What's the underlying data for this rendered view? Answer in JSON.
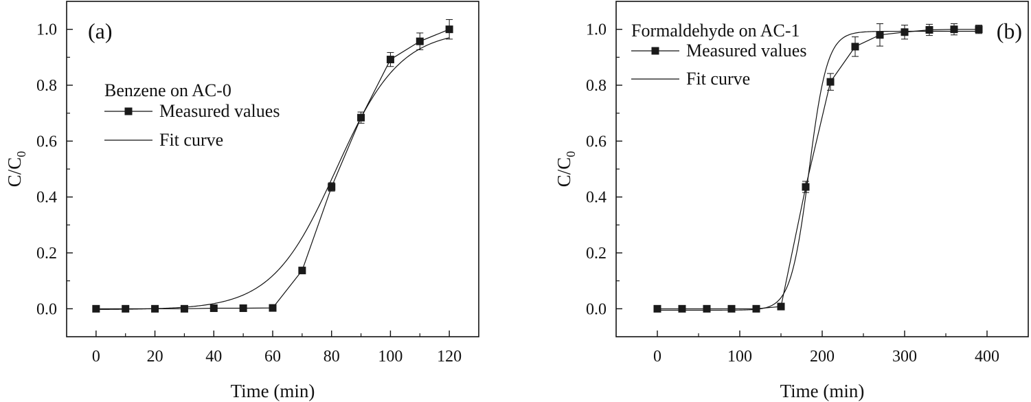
{
  "chart_data": [
    {
      "type": "line",
      "panel_label": "(a)",
      "legend_title": "Benzene on AC-0",
      "xlabel": "Time (min)",
      "ylabel_main": "C/C",
      "ylabel_sub": "0",
      "xlim": [
        -10,
        130
      ],
      "ylim": [
        -0.1,
        1.1
      ],
      "xticks": [
        0,
        20,
        40,
        60,
        80,
        100,
        120
      ],
      "xtick_labels": [
        "0",
        "20",
        "40",
        "60",
        "80",
        "100",
        "120"
      ],
      "yticks": [
        0.0,
        0.2,
        0.4,
        0.6,
        0.8,
        1.0
      ],
      "ytick_labels": [
        "0.0",
        "0.2",
        "0.4",
        "0.6",
        "0.8",
        "1.0"
      ],
      "series": [
        {
          "name": "Measured values",
          "marker": "square",
          "x": [
            0,
            10,
            20,
            30,
            40,
            50,
            60,
            70,
            80,
            90,
            100,
            110,
            120
          ],
          "y": [
            0.0,
            0.0,
            0.0,
            0.0,
            0.002,
            0.002,
            0.003,
            0.137,
            0.436,
            0.684,
            0.892,
            0.957,
            1.0
          ],
          "error": [
            0,
            0,
            0,
            0,
            0,
            0,
            0,
            0.005,
            0.015,
            0.02,
            0.025,
            0.03,
            0.035
          ]
        },
        {
          "name": "Fit curve",
          "model": {
            "form": "logistic",
            "top": 0.998,
            "bottom": -0.003,
            "x0": 81.5,
            "k": 0.092
          }
        }
      ]
    },
    {
      "type": "line",
      "panel_label": "(b)",
      "legend_title": "Formaldehyde on AC-1",
      "xlabel": "Time (min)",
      "ylabel_main": "C/C",
      "ylabel_sub": "0",
      "xlim": [
        -50,
        450
      ],
      "ylim": [
        -0.1,
        1.1
      ],
      "xticks": [
        0,
        100,
        200,
        300,
        400
      ],
      "xtick_labels": [
        "0",
        "100",
        "200",
        "300",
        "400"
      ],
      "yticks": [
        0.0,
        0.2,
        0.4,
        0.6,
        0.8,
        1.0
      ],
      "ytick_labels": [
        "0.0",
        "0.2",
        "0.4",
        "0.6",
        "0.8",
        "1.0"
      ],
      "series": [
        {
          "name": "Measured values",
          "marker": "square",
          "x": [
            0,
            30,
            60,
            90,
            120,
            150,
            180,
            210,
            240,
            270,
            300,
            330,
            360,
            390
          ],
          "y": [
            0.0,
            0.0,
            0.0,
            0.0,
            0.0,
            0.008,
            0.436,
            0.812,
            0.938,
            0.98,
            0.99,
            0.998,
            1.0,
            1.0
          ],
          "error": [
            0,
            0,
            0,
            0,
            0,
            0,
            0.02,
            0.03,
            0.035,
            0.04,
            0.025,
            0.02,
            0.02,
            0.015
          ]
        },
        {
          "name": "Fit curve",
          "model": {
            "form": "logistic",
            "top": 0.993,
            "bottom": -0.005,
            "x0": 184,
            "k": 0.09
          }
        }
      ]
    }
  ]
}
